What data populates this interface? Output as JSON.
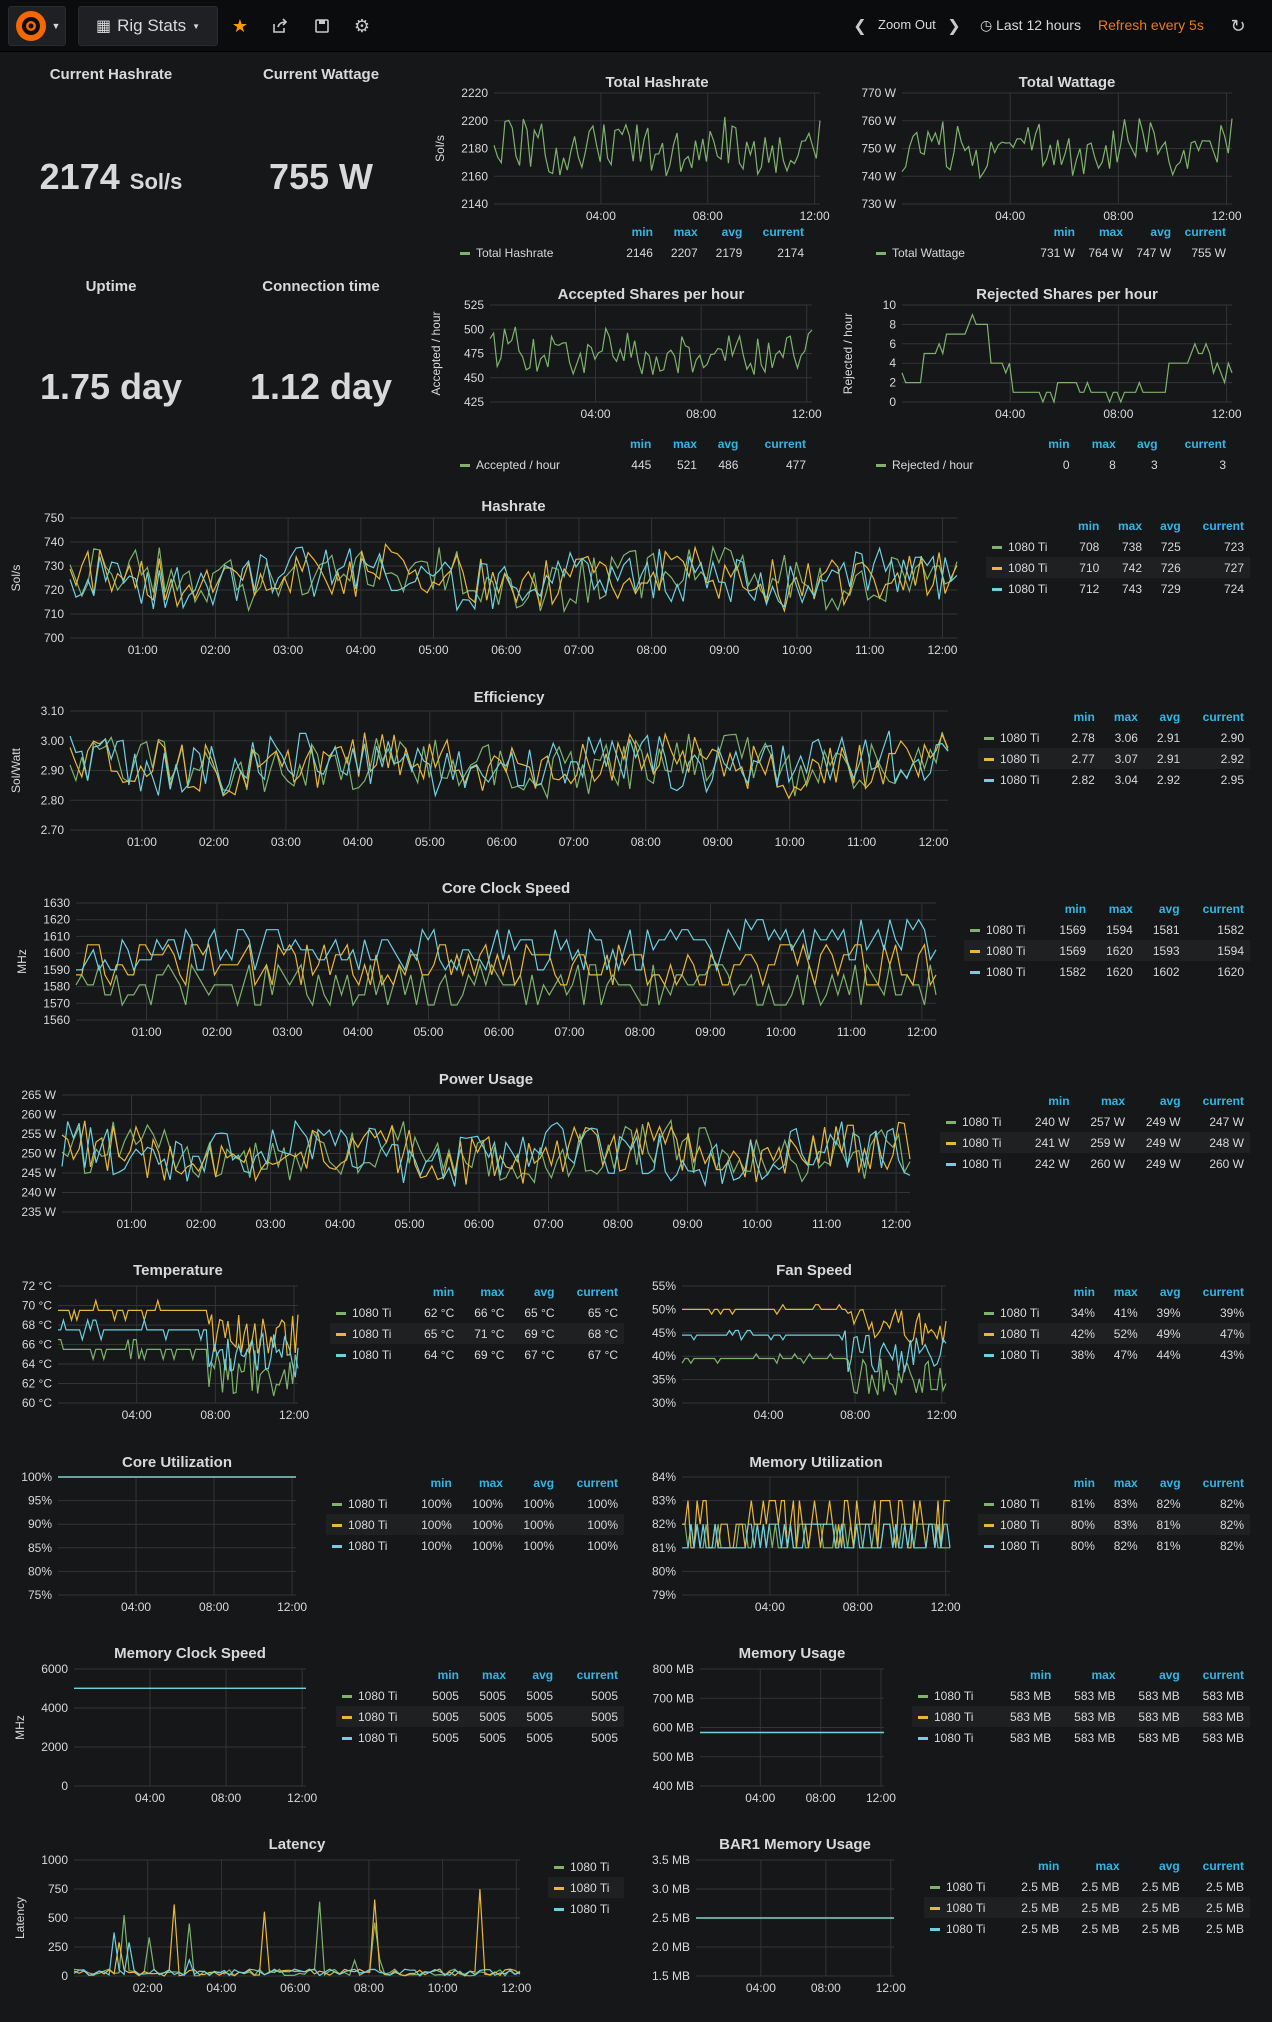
{
  "nav": {
    "dashboard_title": "Rig Stats",
    "zoom_out": "Zoom Out",
    "time_range": "Last 12 hours",
    "refresh": "Refresh every 5s",
    "icons": [
      "grafana-logo-icon",
      "dashboard-grid-icon",
      "caret-down-icon",
      "star-icon",
      "share-icon",
      "save-icon",
      "gear-icon",
      "chevron-left-icon",
      "chevron-right-icon",
      "clock-icon",
      "refresh-icon"
    ]
  },
  "colors": {
    "green": "#7eb26d",
    "yellow": "#eab839",
    "blue": "#6ed0e0",
    "accent": "#33b5e5",
    "orange": "#eb7b18",
    "star": "#ff9900"
  },
  "legend_headers": {
    "min": "min",
    "max": "max",
    "avg": "avg",
    "current": "current"
  },
  "stats": {
    "current_hashrate": {
      "title": "Current Hashrate",
      "value": "2174",
      "unit": "Sol/s"
    },
    "current_wattage": {
      "title": "Current Wattage",
      "value": "755 W"
    },
    "uptime": {
      "title": "Uptime",
      "value": "1.75 day"
    },
    "connection_time": {
      "title": "Connection time",
      "value": "1.12 day"
    }
  },
  "chart_data": [
    {
      "id": "total_hashrate",
      "type": "line",
      "title": "Total Hashrate",
      "ylabel": "Sol/s",
      "ylim": [
        2140,
        2220
      ],
      "yticks": [
        "2220",
        "2200",
        "2180",
        "2160",
        "2140"
      ],
      "xticks": [
        "04:00",
        "08:00",
        "12:00"
      ],
      "grid": true,
      "legend": "bottom",
      "series": [
        {
          "name": "Total Hashrate",
          "color": "#7eb26d",
          "min": "2146",
          "max": "2207",
          "avg": "2179",
          "current": "2174"
        }
      ]
    },
    {
      "id": "total_wattage",
      "type": "line",
      "title": "Total Wattage",
      "ylabel": "",
      "ylim": [
        730,
        770
      ],
      "yticks": [
        "770 W",
        "760 W",
        "750 W",
        "740 W",
        "730 W"
      ],
      "xticks": [
        "04:00",
        "08:00",
        "12:00"
      ],
      "grid": true,
      "legend": "bottom",
      "series": [
        {
          "name": "Total Wattage",
          "color": "#7eb26d",
          "min": "731 W",
          "max": "764 W",
          "avg": "747 W",
          "current": "755 W"
        }
      ]
    },
    {
      "id": "accepted_shares",
      "type": "line",
      "title": "Accepted Shares per hour",
      "ylabel": "Accepted / hour",
      "ylim": [
        425,
        525
      ],
      "yticks": [
        "525",
        "500",
        "475",
        "450",
        "425"
      ],
      "xticks": [
        "04:00",
        "08:00",
        "12:00"
      ],
      "grid": true,
      "legend": "bottom",
      "series": [
        {
          "name": "Accepted / hour",
          "color": "#7eb26d",
          "min": "445",
          "max": "521",
          "avg": "486",
          "current": "477"
        }
      ]
    },
    {
      "id": "rejected_shares",
      "type": "line",
      "title": "Rejected Shares per hour",
      "ylabel": "Rejected / hour",
      "ylim": [
        0,
        10
      ],
      "yticks": [
        "10",
        "8",
        "6",
        "4",
        "2",
        "0"
      ],
      "xticks": [
        "04:00",
        "08:00",
        "12:00"
      ],
      "grid": true,
      "legend": "bottom",
      "series": [
        {
          "name": "Rejected / hour",
          "color": "#7eb26d",
          "min": "0",
          "max": "8",
          "avg": "3",
          "current": "3"
        }
      ]
    },
    {
      "id": "hashrate",
      "type": "line",
      "title": "Hashrate",
      "ylabel": "Sol/s",
      "ylim": [
        700,
        750
      ],
      "yticks": [
        "750",
        "740",
        "730",
        "720",
        "710",
        "700"
      ],
      "xticks": [
        "01:00",
        "02:00",
        "03:00",
        "04:00",
        "05:00",
        "06:00",
        "07:00",
        "08:00",
        "09:00",
        "10:00",
        "11:00",
        "12:00"
      ],
      "grid": true,
      "legend": "right",
      "series": [
        {
          "name": "1080 Ti",
          "color": "#7eb26d",
          "min": "708",
          "max": "738",
          "avg": "725",
          "current": "723"
        },
        {
          "name": "1080 Ti",
          "color": "#eab839",
          "min": "710",
          "max": "742",
          "avg": "726",
          "current": "727"
        },
        {
          "name": "1080 Ti",
          "color": "#6ed0e0",
          "min": "712",
          "max": "743",
          "avg": "729",
          "current": "724"
        }
      ]
    },
    {
      "id": "efficiency",
      "type": "line",
      "title": "Efficiency",
      "ylabel": "Sol/Watt",
      "ylim": [
        2.7,
        3.1
      ],
      "yticks": [
        "3.10",
        "3.00",
        "2.90",
        "2.80",
        "2.70"
      ],
      "xticks": [
        "01:00",
        "02:00",
        "03:00",
        "04:00",
        "05:00",
        "06:00",
        "07:00",
        "08:00",
        "09:00",
        "10:00",
        "11:00",
        "12:00"
      ],
      "grid": true,
      "legend": "right",
      "series": [
        {
          "name": "1080 Ti",
          "color": "#7eb26d",
          "min": "2.78",
          "max": "3.06",
          "avg": "2.91",
          "current": "2.90"
        },
        {
          "name": "1080 Ti",
          "color": "#eab839",
          "min": "2.77",
          "max": "3.07",
          "avg": "2.91",
          "current": "2.92"
        },
        {
          "name": "1080 Ti",
          "color": "#6ed0e0",
          "min": "2.82",
          "max": "3.04",
          "avg": "2.92",
          "current": "2.95"
        }
      ]
    },
    {
      "id": "core_clock",
      "type": "line",
      "title": "Core Clock Speed",
      "ylabel": "MHz",
      "ylim": [
        1560,
        1630
      ],
      "yticks": [
        "1630",
        "1620",
        "1610",
        "1600",
        "1590",
        "1580",
        "1570",
        "1560"
      ],
      "xticks": [
        "01:00",
        "02:00",
        "03:00",
        "04:00",
        "05:00",
        "06:00",
        "07:00",
        "08:00",
        "09:00",
        "10:00",
        "11:00",
        "12:00"
      ],
      "grid": true,
      "legend": "right",
      "series": [
        {
          "name": "1080 Ti",
          "color": "#7eb26d",
          "min": "1569",
          "max": "1594",
          "avg": "1581",
          "current": "1582"
        },
        {
          "name": "1080 Ti",
          "color": "#eab839",
          "min": "1569",
          "max": "1620",
          "avg": "1593",
          "current": "1594"
        },
        {
          "name": "1080 Ti",
          "color": "#6ed0e0",
          "min": "1582",
          "max": "1620",
          "avg": "1602",
          "current": "1620"
        }
      ]
    },
    {
      "id": "power_usage",
      "type": "line",
      "title": "Power Usage",
      "ylabel": "",
      "ylim": [
        235,
        265
      ],
      "yticks": [
        "265 W",
        "260 W",
        "255 W",
        "250 W",
        "245 W",
        "240 W",
        "235 W"
      ],
      "xticks": [
        "01:00",
        "02:00",
        "03:00",
        "04:00",
        "05:00",
        "06:00",
        "07:00",
        "08:00",
        "09:00",
        "10:00",
        "11:00",
        "12:00"
      ],
      "grid": true,
      "legend": "right",
      "series": [
        {
          "name": "1080 Ti",
          "color": "#7eb26d",
          "min": "240 W",
          "max": "257 W",
          "avg": "249 W",
          "current": "247 W"
        },
        {
          "name": "1080 Ti",
          "color": "#eab839",
          "min": "241 W",
          "max": "259 W",
          "avg": "249 W",
          "current": "248 W"
        },
        {
          "name": "1080 Ti",
          "color": "#6ed0e0",
          "min": "242 W",
          "max": "260 W",
          "avg": "249 W",
          "current": "260 W"
        }
      ]
    },
    {
      "id": "temperature",
      "type": "line",
      "title": "Temperature",
      "ylabel": "",
      "ylim": [
        60,
        72
      ],
      "yticks": [
        "72 °C",
        "70 °C",
        "68 °C",
        "66 °C",
        "64 °C",
        "62 °C",
        "60 °C"
      ],
      "xticks": [
        "04:00",
        "08:00",
        "12:00"
      ],
      "grid": true,
      "legend": "right",
      "series": [
        {
          "name": "1080 Ti",
          "color": "#7eb26d",
          "min": "62 °C",
          "max": "66 °C",
          "avg": "65 °C",
          "current": "65 °C"
        },
        {
          "name": "1080 Ti",
          "color": "#eab839",
          "min": "65 °C",
          "max": "71 °C",
          "avg": "69 °C",
          "current": "68 °C"
        },
        {
          "name": "1080 Ti",
          "color": "#6ed0e0",
          "min": "64 °C",
          "max": "69 °C",
          "avg": "67 °C",
          "current": "67 °C"
        }
      ]
    },
    {
      "id": "fan_speed",
      "type": "line",
      "title": "Fan Speed",
      "ylabel": "",
      "ylim": [
        30,
        55
      ],
      "yticks": [
        "55%",
        "50%",
        "45%",
        "40%",
        "35%",
        "30%"
      ],
      "xticks": [
        "04:00",
        "08:00",
        "12:00"
      ],
      "grid": true,
      "legend": "right",
      "series": [
        {
          "name": "1080 Ti",
          "color": "#7eb26d",
          "min": "34%",
          "max": "41%",
          "avg": "39%",
          "current": "39%"
        },
        {
          "name": "1080 Ti",
          "color": "#eab839",
          "min": "42%",
          "max": "52%",
          "avg": "49%",
          "current": "47%"
        },
        {
          "name": "1080 Ti",
          "color": "#6ed0e0",
          "min": "38%",
          "max": "47%",
          "avg": "44%",
          "current": "43%"
        }
      ]
    },
    {
      "id": "core_util",
      "type": "line",
      "title": "Core Utilization",
      "ylabel": "",
      "ylim": [
        75,
        100
      ],
      "yticks": [
        "100%",
        "95%",
        "90%",
        "85%",
        "80%",
        "75%"
      ],
      "xticks": [
        "04:00",
        "08:00",
        "12:00"
      ],
      "grid": true,
      "legend": "right",
      "series": [
        {
          "name": "1080 Ti",
          "color": "#7eb26d",
          "min": "100%",
          "max": "100%",
          "avg": "100%",
          "current": "100%"
        },
        {
          "name": "1080 Ti",
          "color": "#eab839",
          "min": "100%",
          "max": "100%",
          "avg": "100%",
          "current": "100%"
        },
        {
          "name": "1080 Ti",
          "color": "#6ed0e0",
          "min": "100%",
          "max": "100%",
          "avg": "100%",
          "current": "100%"
        }
      ]
    },
    {
      "id": "mem_util",
      "type": "line",
      "title": "Memory Utilization",
      "ylabel": "",
      "ylim": [
        79,
        84
      ],
      "yticks": [
        "84%",
        "83%",
        "82%",
        "81%",
        "80%",
        "79%"
      ],
      "xticks": [
        "04:00",
        "08:00",
        "12:00"
      ],
      "grid": true,
      "legend": "right",
      "series": [
        {
          "name": "1080 Ti",
          "color": "#7eb26d",
          "min": "81%",
          "max": "83%",
          "avg": "82%",
          "current": "82%"
        },
        {
          "name": "1080 Ti",
          "color": "#eab839",
          "min": "80%",
          "max": "83%",
          "avg": "81%",
          "current": "82%"
        },
        {
          "name": "1080 Ti",
          "color": "#6ed0e0",
          "min": "80%",
          "max": "82%",
          "avg": "81%",
          "current": "82%"
        }
      ]
    },
    {
      "id": "mem_clock",
      "type": "line",
      "title": "Memory Clock Speed",
      "ylabel": "MHz",
      "ylim": [
        0,
        6000
      ],
      "yticks": [
        "6000",
        "4000",
        "2000",
        "0"
      ],
      "xticks": [
        "04:00",
        "08:00",
        "12:00"
      ],
      "grid": true,
      "legend": "right",
      "series": [
        {
          "name": "1080 Ti",
          "color": "#7eb26d",
          "min": "5005",
          "max": "5005",
          "avg": "5005",
          "current": "5005"
        },
        {
          "name": "1080 Ti",
          "color": "#eab839",
          "min": "5005",
          "max": "5005",
          "avg": "5005",
          "current": "5005"
        },
        {
          "name": "1080 Ti",
          "color": "#6ed0e0",
          "min": "5005",
          "max": "5005",
          "avg": "5005",
          "current": "5005"
        }
      ]
    },
    {
      "id": "mem_usage",
      "type": "line",
      "title": "Memory Usage",
      "ylabel": "",
      "ylim": [
        400,
        800
      ],
      "yticks": [
        "800 MB",
        "700 MB",
        "600 MB",
        "500 MB",
        "400 MB"
      ],
      "xticks": [
        "04:00",
        "08:00",
        "12:00"
      ],
      "grid": true,
      "legend": "right",
      "series": [
        {
          "name": "1080 Ti",
          "color": "#7eb26d",
          "min": "583 MB",
          "max": "583 MB",
          "avg": "583 MB",
          "current": "583 MB"
        },
        {
          "name": "1080 Ti",
          "color": "#eab839",
          "min": "583 MB",
          "max": "583 MB",
          "avg": "583 MB",
          "current": "583 MB"
        },
        {
          "name": "1080 Ti",
          "color": "#6ed0e0",
          "min": "583 MB",
          "max": "583 MB",
          "avg": "583 MB",
          "current": "583 MB"
        }
      ]
    },
    {
      "id": "latency",
      "type": "line",
      "title": "Latency",
      "ylabel": "Latency",
      "ylim": [
        0,
        1000
      ],
      "yticks": [
        "1000",
        "750",
        "500",
        "250",
        "0"
      ],
      "xticks": [
        "02:00",
        "04:00",
        "06:00",
        "08:00",
        "10:00",
        "12:00"
      ],
      "grid": true,
      "legend": "right",
      "series": [
        {
          "name": "1080 Ti",
          "color": "#7eb26d"
        },
        {
          "name": "1080 Ti",
          "color": "#eab839"
        },
        {
          "name": "1080 Ti",
          "color": "#6ed0e0"
        }
      ]
    },
    {
      "id": "bar1_mem",
      "type": "line",
      "title": "BAR1 Memory Usage",
      "ylabel": "",
      "ylim": [
        1.5,
        3.5
      ],
      "yticks": [
        "3.5 MB",
        "3.0 MB",
        "2.5 MB",
        "2.0 MB",
        "1.5 MB"
      ],
      "xticks": [
        "04:00",
        "08:00",
        "12:00"
      ],
      "grid": true,
      "legend": "right",
      "series": [
        {
          "name": "1080 Ti",
          "color": "#7eb26d",
          "min": "2.5 MB",
          "max": "2.5 MB",
          "avg": "2.5 MB",
          "current": "2.5 MB"
        },
        {
          "name": "1080 Ti",
          "color": "#eab839",
          "min": "2.5 MB",
          "max": "2.5 MB",
          "avg": "2.5 MB",
          "current": "2.5 MB"
        },
        {
          "name": "1080 Ti",
          "color": "#6ed0e0",
          "min": "2.5 MB",
          "max": "2.5 MB",
          "avg": "2.5 MB",
          "current": "2.5 MB"
        }
      ]
    }
  ]
}
